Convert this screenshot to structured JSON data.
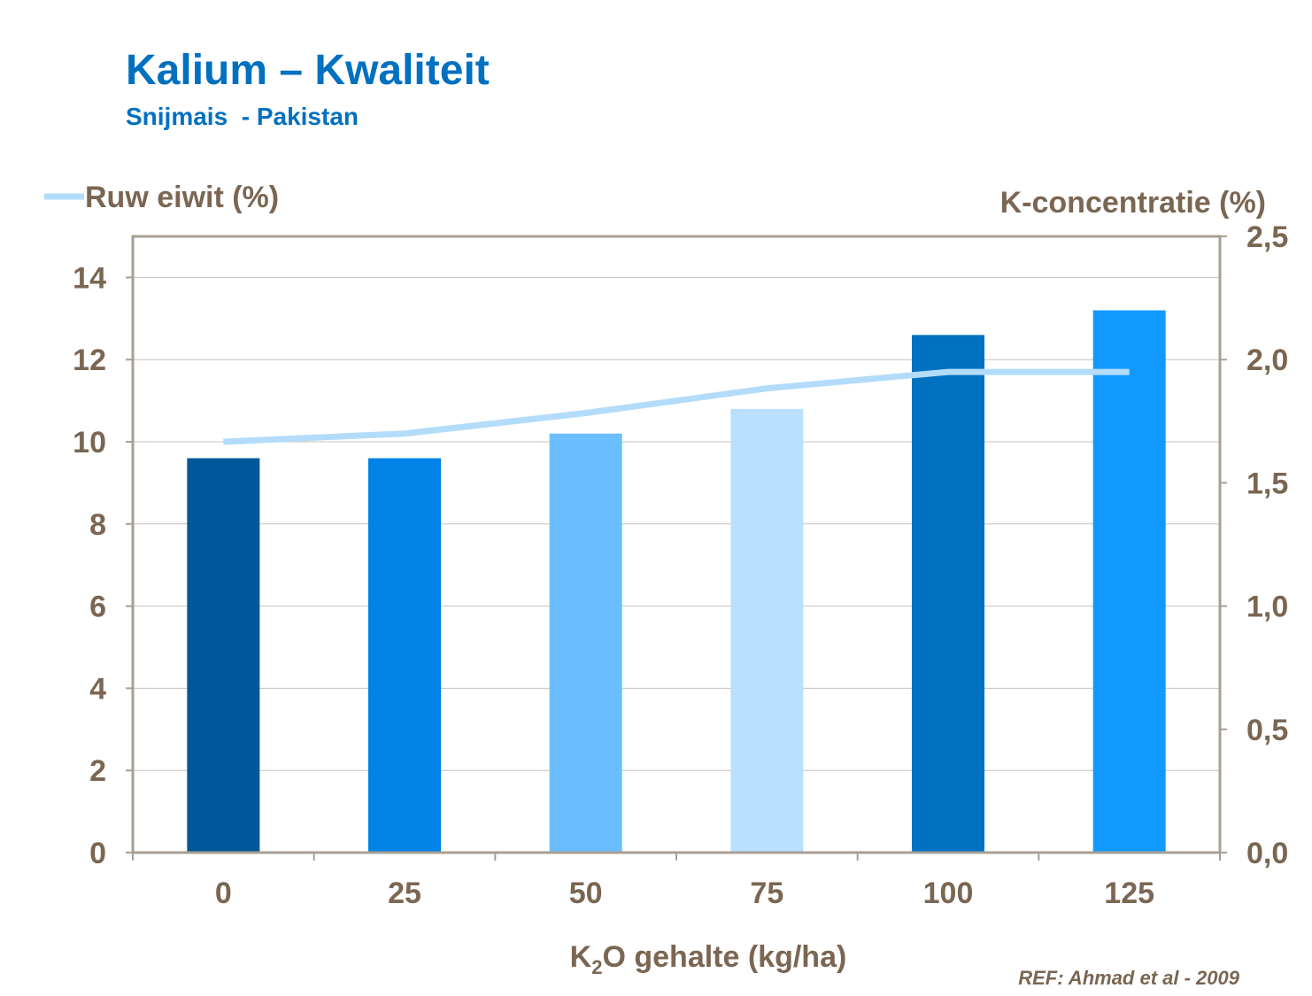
{
  "header": {
    "title": "Kalium – Kwaliteit",
    "subtitle": "Snijmais  - Pakistan"
  },
  "reference": "REF: Ahmad et al - 2009",
  "chart_data": {
    "type": "bar+line",
    "categories": [
      "0",
      "25",
      "50",
      "75",
      "100",
      "125"
    ],
    "xlabel": "K2O gehalte (kg/ha)",
    "xlabel_parts": {
      "pre": "K",
      "sub": "2",
      "post": "O gehalte (kg/ha)"
    },
    "bars": {
      "axis": "right",
      "ylabel": "K-concentratie (%)",
      "values": [
        1.6,
        1.6,
        1.7,
        1.8,
        2.1,
        2.2
      ],
      "colors": [
        "#00589a",
        "#0082e6",
        "#6abeff",
        "#b9e0ff",
        "#0070c0",
        "#1199ff"
      ]
    },
    "line": {
      "axis": "left",
      "name": "Ruw eiwit (%)",
      "values": [
        10.0,
        10.2,
        10.7,
        11.3,
        11.7,
        11.7
      ],
      "color": "#b3dcfa"
    },
    "left_axis": {
      "ylim": [
        0,
        15
      ],
      "ticks": [
        "0",
        "2",
        "4",
        "6",
        "8",
        "10",
        "12",
        "14"
      ]
    },
    "right_axis": {
      "ylim": [
        0,
        2.5
      ],
      "ticks": [
        "0,0",
        "0,5",
        "1,0",
        "1,5",
        "2,0",
        "2,5"
      ]
    },
    "grid": true,
    "legend": "top-left"
  }
}
